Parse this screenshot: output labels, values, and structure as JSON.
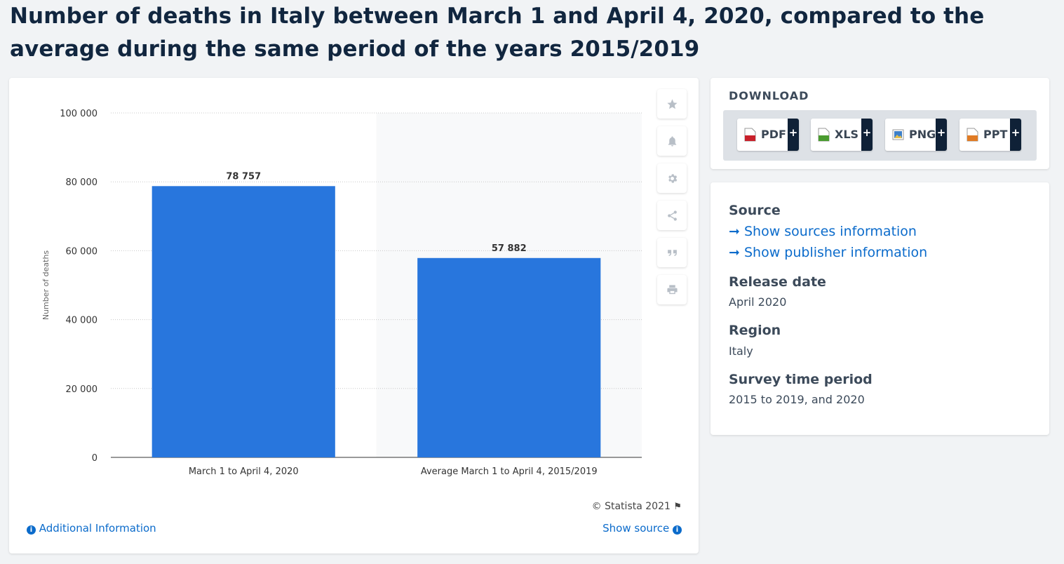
{
  "title": "Number of deaths in Italy between March 1 and April 4, 2020, compared to the average during the same period of the years 2015/2019",
  "chart_data": {
    "type": "bar",
    "categories": [
      "March 1 to April 4, 2020",
      "Average March 1 to April 4, 2015/2019"
    ],
    "values": [
      78757,
      57882
    ],
    "value_labels": [
      "78 757",
      "57 882"
    ],
    "ylabel": "Number of deaths",
    "ylim": [
      0,
      100000
    ],
    "yticks": [
      0,
      20000,
      40000,
      60000,
      80000,
      100000
    ],
    "ytick_labels": [
      "0",
      "20 000",
      "40 000",
      "60 000",
      "80 000",
      "100 000"
    ],
    "grid": true,
    "bar_color": "#2876dd"
  },
  "toolbar": {
    "icons": [
      "star-icon",
      "bell-icon",
      "gear-icon",
      "share-icon",
      "quote-icon",
      "print-icon"
    ]
  },
  "footer": {
    "copyright": "© Statista 2021",
    "additional_info": "Additional Information",
    "show_source": "Show source"
  },
  "download": {
    "heading": "DOWNLOAD",
    "buttons": [
      {
        "label": "PDF",
        "plus": "+",
        "color": "#c8202a"
      },
      {
        "label": "XLS",
        "plus": "+",
        "color": "#4a9b2f"
      },
      {
        "label": "PNG",
        "plus": "+",
        "color": "#3c7fc9"
      },
      {
        "label": "PPT",
        "plus": "+",
        "color": "#e07b24"
      }
    ]
  },
  "info": {
    "source_heading": "Source",
    "links": [
      "Show sources information",
      "Show publisher information"
    ],
    "release_heading": "Release date",
    "release_value": "April 2020",
    "region_heading": "Region",
    "region_value": "Italy",
    "period_heading": "Survey time period",
    "period_value": "2015 to 2019, and 2020"
  },
  "colors": {
    "accent": "#0b6bcb",
    "title": "#11263f"
  }
}
